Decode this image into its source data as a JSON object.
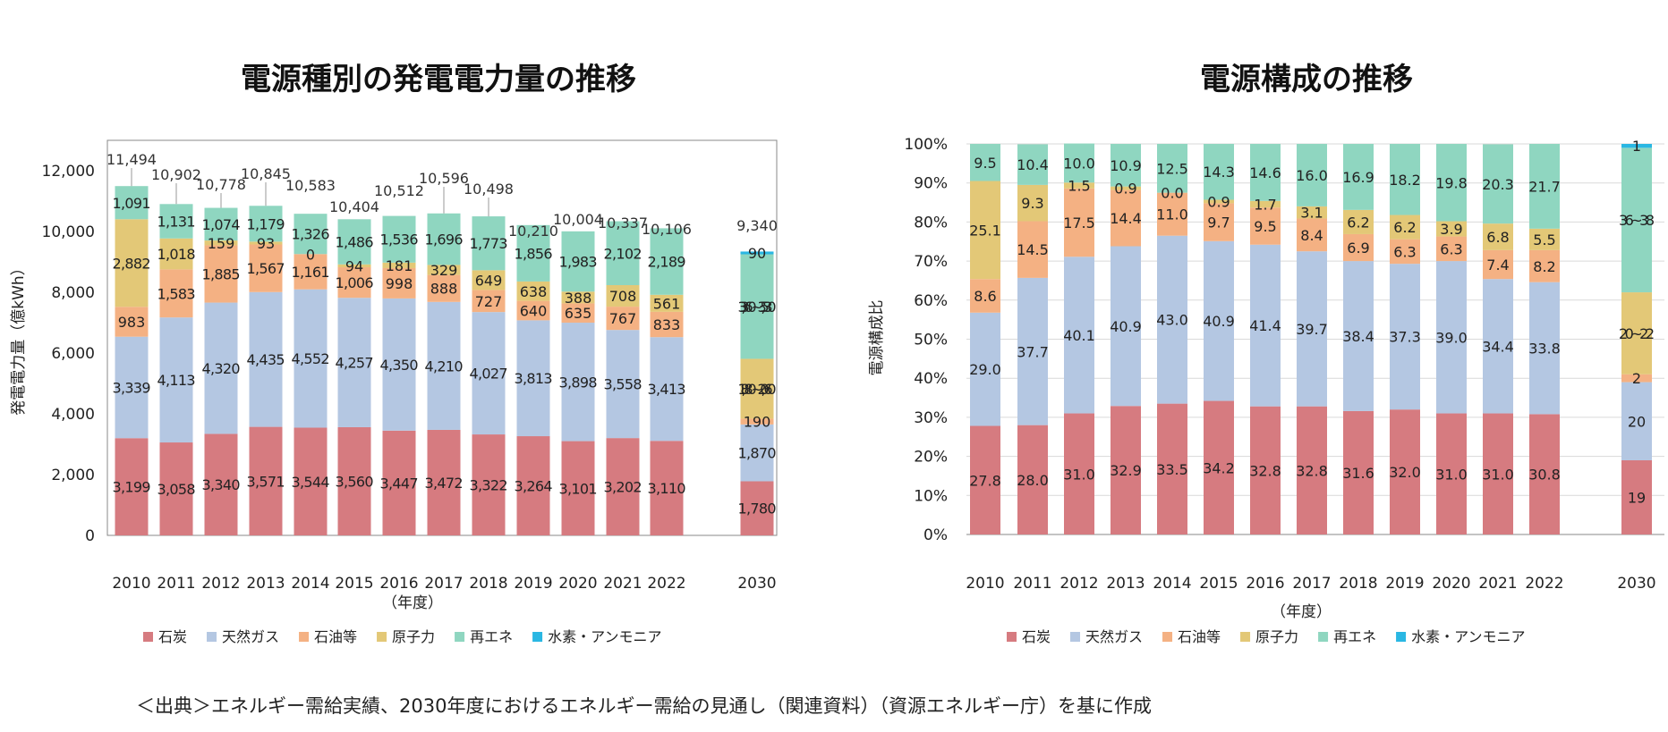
{
  "source": "＜出典＞エネルギー需給実績、2030年度におけるエネルギー需給の見通し（関連資料）（資源エネルギー庁）を基に作成",
  "chart_data": [
    {
      "type": "bar",
      "stacked": true,
      "title": "電源種別の発電電力量の推移",
      "xlabel": "（年度）",
      "ylabel": "発電電力量（億kWh）",
      "ylim": [
        0,
        13000
      ],
      "yticks": [
        0,
        2000,
        4000,
        6000,
        8000,
        10000,
        12000
      ],
      "ytick_labels": [
        "0",
        "2,000",
        "4,000",
        "6,000",
        "8,000",
        "10,000",
        "12,000"
      ],
      "grid": true,
      "legend_position": "bottom",
      "categories": [
        "2010",
        "2011",
        "2012",
        "2013",
        "2014",
        "2015",
        "2016",
        "2017",
        "2018",
        "2019",
        "2020",
        "2021",
        "2022",
        "2030"
      ],
      "series": [
        {
          "name": "石炭",
          "color": "#d67b80",
          "values": [
            3199,
            3058,
            3340,
            3571,
            3544,
            3560,
            3447,
            3472,
            3322,
            3264,
            3101,
            3202,
            3110,
            1780
          ],
          "labels": [
            "3,199",
            "3,058",
            "3,340",
            "3,571",
            "3,544",
            "3,560",
            "3,447",
            "3,472",
            "3,322",
            "3,264",
            "3,101",
            "3,202",
            "3,110",
            "1,780"
          ]
        },
        {
          "name": "天然ガス",
          "color": "#b4c7e2",
          "values": [
            3339,
            4113,
            4320,
            4435,
            4552,
            4257,
            4350,
            4210,
            4027,
            3813,
            3898,
            3558,
            3413,
            1870
          ],
          "labels": [
            "3,339",
            "4,113",
            "4,320",
            "4,435",
            "4,552",
            "4,257",
            "4,350",
            "4,210",
            "4,027",
            "3,813",
            "3,898",
            "3,558",
            "3,413",
            "1,870"
          ]
        },
        {
          "name": "石油等",
          "color": "#f4b183",
          "values": [
            983,
            1583,
            1885,
            1567,
            1161,
            1006,
            998,
            888,
            727,
            640,
            635,
            767,
            833,
            190
          ],
          "labels": [
            "983",
            "1,583",
            "1,885",
            "1,567",
            "1,161",
            "1,006",
            "998",
            "888",
            "727",
            "640",
            "635",
            "767",
            "833",
            "190"
          ]
        },
        {
          "name": "原子力",
          "color": "#e3c877",
          "values": [
            2882,
            1018,
            159,
            93,
            0,
            94,
            181,
            329,
            649,
            638,
            388,
            708,
            561,
            1970
          ],
          "labels": [
            "2,882",
            "1,018",
            "159",
            "93",
            "0",
            "94",
            "181",
            "329",
            "649",
            "638",
            "388",
            "708",
            "561",
            "1,880~2,060"
          ]
        },
        {
          "name": "再エネ",
          "color": "#8fd6c0",
          "values": [
            1091,
            1131,
            1074,
            1179,
            1326,
            1486,
            1536,
            1696,
            1773,
            1856,
            1983,
            2102,
            2189,
            3440
          ],
          "labels": [
            "1,091",
            "1,131",
            "1,074",
            "1,179",
            "1,326",
            "1,486",
            "1,536",
            "1,696",
            "1,773",
            "1,856",
            "1,983",
            "2,102",
            "2,189",
            "3,360~3,530"
          ]
        },
        {
          "name": "水素・アンモニア",
          "color": "#2ab7e3",
          "values": [
            0,
            0,
            0,
            0,
            0,
            0,
            0,
            0,
            0,
            0,
            0,
            0,
            0,
            90
          ],
          "labels": [
            "",
            "",
            "",
            "",
            "",
            "",
            "",
            "",
            "",
            "",
            "",
            "",
            "",
            "90"
          ]
        }
      ],
      "totals": [
        "11,494",
        "10,902",
        "10,778",
        "10,845",
        "10,583",
        "10,404",
        "10,512",
        "10,596",
        "10,498",
        "10,210",
        "10,004",
        "10,337",
        "10,106",
        "9,340"
      ]
    },
    {
      "type": "bar",
      "stacked": true,
      "title": "電源構成の推移",
      "xlabel": "（年度）",
      "ylabel": "電源構成比",
      "ylim": [
        0,
        100
      ],
      "yticks": [
        0,
        10,
        20,
        30,
        40,
        50,
        60,
        70,
        80,
        90,
        100
      ],
      "ytick_labels": [
        "0%",
        "10%",
        "20%",
        "30%",
        "40%",
        "50%",
        "60%",
        "70%",
        "80%",
        "90%",
        "100%"
      ],
      "grid": true,
      "legend_position": "bottom",
      "categories": [
        "2010",
        "2011",
        "2012",
        "2013",
        "2014",
        "2015",
        "2016",
        "2017",
        "2018",
        "2019",
        "2020",
        "2021",
        "2022",
        "2030"
      ],
      "series": [
        {
          "name": "石炭",
          "color": "#d67b80",
          "values": [
            27.8,
            28.0,
            31.0,
            32.9,
            33.5,
            34.2,
            32.8,
            32.8,
            31.6,
            32.0,
            31.0,
            31.0,
            30.8,
            19
          ],
          "labels": [
            "27.8",
            "28.0",
            "31.0",
            "32.9",
            "33.5",
            "34.2",
            "32.8",
            "32.8",
            "31.6",
            "32.0",
            "31.0",
            "31.0",
            "30.8",
            "19"
          ]
        },
        {
          "name": "天然ガス",
          "color": "#b4c7e2",
          "values": [
            29.0,
            37.7,
            40.1,
            40.9,
            43.0,
            40.9,
            41.4,
            39.7,
            38.4,
            37.3,
            39.0,
            34.4,
            33.8,
            20
          ],
          "labels": [
            "29.0",
            "37.7",
            "40.1",
            "40.9",
            "43.0",
            "40.9",
            "41.4",
            "39.7",
            "38.4",
            "37.3",
            "39.0",
            "34.4",
            "33.8",
            "20"
          ]
        },
        {
          "name": "石油等",
          "color": "#f4b183",
          "values": [
            8.6,
            14.5,
            17.5,
            14.4,
            11.0,
            9.7,
            9.5,
            8.4,
            6.9,
            6.3,
            6.3,
            7.4,
            8.2,
            2
          ],
          "labels": [
            "8.6",
            "14.5",
            "17.5",
            "14.4",
            "11.0",
            "9.7",
            "9.5",
            "8.4",
            "6.9",
            "6.3",
            "6.3",
            "7.4",
            "8.2",
            "2"
          ]
        },
        {
          "name": "原子力",
          "color": "#e3c877",
          "values": [
            25.1,
            9.3,
            1.5,
            0.9,
            0.0,
            0.9,
            1.7,
            3.1,
            6.2,
            6.2,
            3.9,
            6.8,
            5.5,
            21
          ],
          "labels": [
            "25.1",
            "9.3",
            "1.5",
            "0.9",
            "0.0",
            "0.9",
            "1.7",
            "3.1",
            "6.2",
            "6.2",
            "3.9",
            "6.8",
            "5.5",
            "20~22"
          ]
        },
        {
          "name": "再エネ",
          "color": "#8fd6c0",
          "values": [
            9.5,
            10.4,
            10.0,
            10.9,
            12.5,
            14.3,
            14.6,
            16.0,
            16.9,
            18.2,
            19.8,
            20.3,
            21.7,
            37
          ],
          "labels": [
            "9.5",
            "10.4",
            "10.0",
            "10.9",
            "12.5",
            "14.3",
            "14.6",
            "16.0",
            "16.9",
            "18.2",
            "19.8",
            "20.3",
            "21.7",
            "36~38"
          ]
        },
        {
          "name": "水素・アンモニア",
          "color": "#2ab7e3",
          "values": [
            0,
            0,
            0,
            0,
            0,
            0,
            0,
            0,
            0,
            0,
            0,
            0,
            0,
            1
          ],
          "labels": [
            "",
            "",
            "",
            "",
            "",
            "",
            "",
            "",
            "",
            "",
            "",
            "",
            "",
            "1"
          ]
        }
      ]
    }
  ]
}
